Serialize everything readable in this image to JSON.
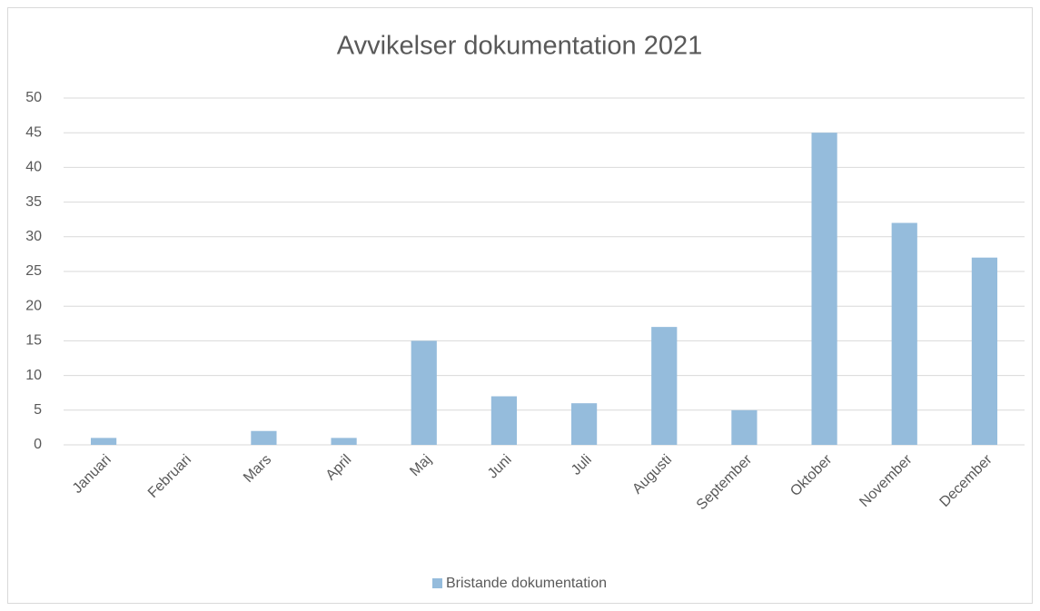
{
  "chart_data": {
    "type": "bar",
    "title": "Avvikelser dokumentation 2021",
    "categories": [
      "Januari",
      "Februari",
      "Mars",
      "April",
      "Maj",
      "Juni",
      "Juli",
      "Augusti",
      "September",
      "Oktober",
      "November",
      "December"
    ],
    "series": [
      {
        "name": "Bristande dokumentation",
        "color": "#95bcdc",
        "values": [
          1,
          0,
          2,
          1,
          15,
          7,
          6,
          17,
          5,
          45,
          32,
          27
        ]
      }
    ],
    "ylim": [
      0,
      50
    ],
    "yticks": [
      0,
      5,
      10,
      15,
      20,
      25,
      30,
      35,
      40,
      45,
      50
    ],
    "grid": true,
    "legend": "bottom"
  }
}
